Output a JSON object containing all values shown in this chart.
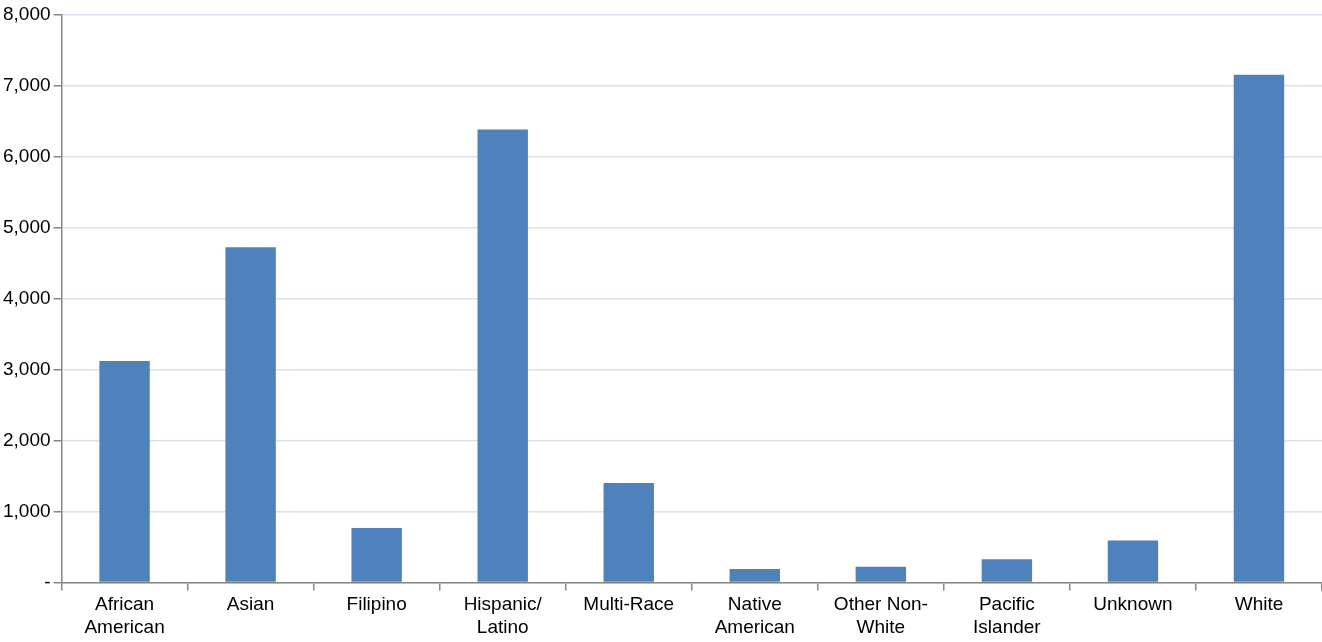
{
  "chart_data": {
    "type": "bar",
    "categories": [
      "African American",
      "Asian",
      "Filipino",
      "Hispanic/Latino",
      "Multi-Race",
      "Native American",
      "Other Non-White",
      "Pacific Islander",
      "Unknown",
      "White"
    ],
    "values": [
      3120,
      4720,
      765,
      6380,
      1400,
      190,
      220,
      325,
      590,
      7150
    ],
    "color": "#4f81bd",
    "ylim": [
      0,
      8000
    ],
    "yticks": [
      {
        "value": 0,
        "label": "-"
      },
      {
        "value": 1000,
        "label": "1,000"
      },
      {
        "value": 2000,
        "label": "2,000"
      },
      {
        "value": 3000,
        "label": "3,000"
      },
      {
        "value": 4000,
        "label": "4,000"
      },
      {
        "value": 5000,
        "label": "5,000"
      },
      {
        "value": 6000,
        "label": "6,000"
      },
      {
        "value": 7000,
        "label": "7,000"
      },
      {
        "value": 8000,
        "label": "8,000"
      }
    ],
    "grid": "y",
    "legend": false
  }
}
